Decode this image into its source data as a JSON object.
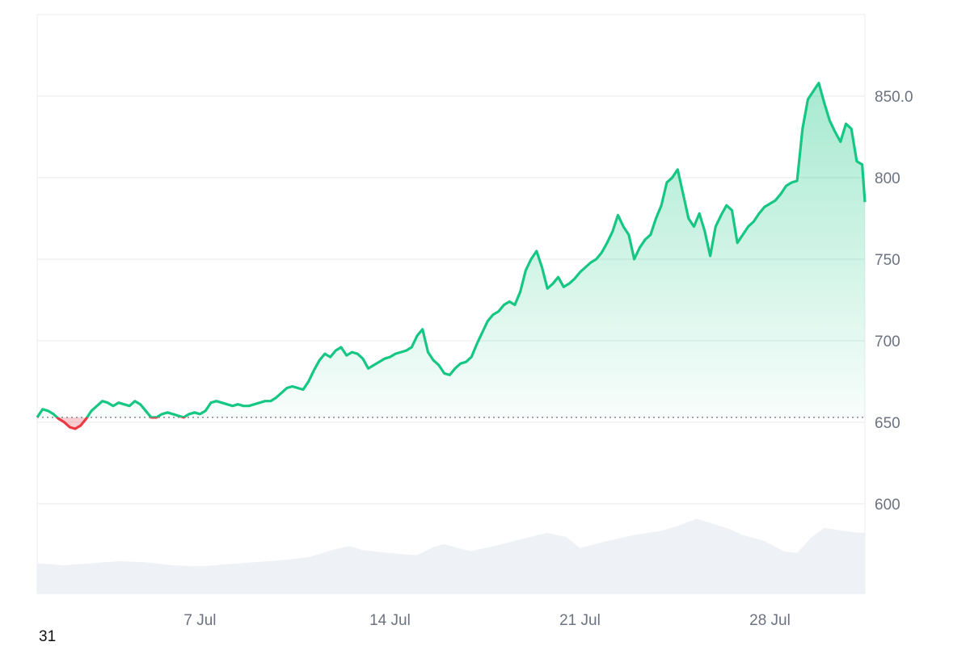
{
  "corner_label": "31",
  "colors": {
    "up_line": "#16c784",
    "down_line": "#ea3943",
    "grid": "#eef0f3",
    "baseline_dots": "#6b7280",
    "volume_fill": "#eef1f5",
    "axis_text": "#6b7280"
  },
  "chart_data": {
    "type": "area",
    "title": "",
    "xlabel": "",
    "ylabel": "",
    "ylim": [
      545,
      900
    ],
    "xlim": [
      0,
      30.5
    ],
    "yticks": [
      600,
      650,
      700,
      750,
      800,
      850
    ],
    "ytick_labels": [
      "600",
      "650",
      "700",
      "750",
      "800",
      "850.0"
    ],
    "xticks": [
      6,
      13,
      20,
      27
    ],
    "xtick_labels": [
      "7 Jul",
      "14 Jul",
      "21 Jul",
      "28 Jul"
    ],
    "baseline": 653,
    "grid": true,
    "legend": "none",
    "x_unit": "days since 1 Jul",
    "series": [
      {
        "values": [
          [
            0.0,
            653
          ],
          [
            0.2,
            658
          ],
          [
            0.4,
            657
          ],
          [
            0.6,
            655
          ],
          [
            0.8,
            652
          ],
          [
            1.0,
            650
          ],
          [
            1.2,
            647
          ],
          [
            1.4,
            646
          ],
          [
            1.6,
            648
          ],
          [
            1.8,
            652
          ],
          [
            2.0,
            657
          ],
          [
            2.2,
            660
          ],
          [
            2.4,
            663
          ],
          [
            2.6,
            662
          ],
          [
            2.8,
            660
          ],
          [
            3.0,
            662
          ],
          [
            3.2,
            661
          ],
          [
            3.4,
            660
          ],
          [
            3.6,
            663
          ],
          [
            3.8,
            661
          ],
          [
            4.0,
            657
          ],
          [
            4.2,
            653
          ],
          [
            4.4,
            653
          ],
          [
            4.6,
            655
          ],
          [
            4.8,
            656
          ],
          [
            5.0,
            655
          ],
          [
            5.2,
            654
          ],
          [
            5.4,
            653
          ],
          [
            5.6,
            655
          ],
          [
            5.8,
            656
          ],
          [
            6.0,
            655
          ],
          [
            6.2,
            657
          ],
          [
            6.4,
            662
          ],
          [
            6.6,
            663
          ],
          [
            6.8,
            662
          ],
          [
            7.0,
            661
          ],
          [
            7.2,
            660
          ],
          [
            7.4,
            661
          ],
          [
            7.6,
            660
          ],
          [
            7.8,
            660
          ],
          [
            8.0,
            661
          ],
          [
            8.2,
            662
          ],
          [
            8.4,
            663
          ],
          [
            8.6,
            663
          ],
          [
            8.8,
            665
          ],
          [
            9.0,
            668
          ],
          [
            9.2,
            671
          ],
          [
            9.4,
            672
          ],
          [
            9.6,
            671
          ],
          [
            9.8,
            670
          ],
          [
            10.0,
            675
          ],
          [
            10.2,
            682
          ],
          [
            10.4,
            688
          ],
          [
            10.6,
            692
          ],
          [
            10.8,
            690
          ],
          [
            11.0,
            694
          ],
          [
            11.2,
            696
          ],
          [
            11.4,
            691
          ],
          [
            11.6,
            693
          ],
          [
            11.8,
            692
          ],
          [
            12.0,
            689
          ],
          [
            12.2,
            683
          ],
          [
            12.4,
            685
          ],
          [
            12.6,
            687
          ],
          [
            12.8,
            689
          ],
          [
            13.0,
            690
          ],
          [
            13.2,
            692
          ],
          [
            13.4,
            693
          ],
          [
            13.6,
            694
          ],
          [
            13.8,
            696
          ],
          [
            14.0,
            703
          ],
          [
            14.2,
            707
          ],
          [
            14.4,
            693
          ],
          [
            14.6,
            688
          ],
          [
            14.8,
            685
          ],
          [
            15.0,
            680
          ],
          [
            15.2,
            679
          ],
          [
            15.4,
            683
          ],
          [
            15.6,
            686
          ],
          [
            15.8,
            687
          ],
          [
            16.0,
            690
          ],
          [
            16.2,
            698
          ],
          [
            16.4,
            705
          ],
          [
            16.6,
            712
          ],
          [
            16.8,
            716
          ],
          [
            17.0,
            718
          ],
          [
            17.2,
            722
          ],
          [
            17.4,
            724
          ],
          [
            17.6,
            722
          ],
          [
            17.8,
            730
          ],
          [
            18.0,
            743
          ],
          [
            18.2,
            750
          ],
          [
            18.4,
            755
          ],
          [
            18.6,
            745
          ],
          [
            18.8,
            732
          ],
          [
            19.0,
            735
          ],
          [
            19.2,
            739
          ],
          [
            19.4,
            733
          ],
          [
            19.6,
            735
          ],
          [
            19.8,
            738
          ],
          [
            20.0,
            742
          ],
          [
            20.2,
            745
          ],
          [
            20.4,
            748
          ],
          [
            20.6,
            750
          ],
          [
            20.8,
            754
          ],
          [
            21.0,
            760
          ],
          [
            21.2,
            767
          ],
          [
            21.4,
            777
          ],
          [
            21.6,
            770
          ],
          [
            21.8,
            765
          ],
          [
            22.0,
            750
          ],
          [
            22.2,
            757
          ],
          [
            22.4,
            762
          ],
          [
            22.6,
            765
          ],
          [
            22.8,
            775
          ],
          [
            23.0,
            783
          ],
          [
            23.2,
            797
          ],
          [
            23.4,
            800
          ],
          [
            23.6,
            805
          ],
          [
            23.8,
            790
          ],
          [
            24.0,
            775
          ],
          [
            24.2,
            770
          ],
          [
            24.4,
            778
          ],
          [
            24.6,
            767
          ],
          [
            24.8,
            752
          ],
          [
            25.0,
            770
          ],
          [
            25.2,
            777
          ],
          [
            25.4,
            783
          ],
          [
            25.6,
            780
          ],
          [
            25.8,
            760
          ],
          [
            26.0,
            765
          ],
          [
            26.2,
            770
          ],
          [
            26.4,
            773
          ],
          [
            26.6,
            778
          ],
          [
            26.8,
            782
          ],
          [
            27.0,
            784
          ],
          [
            27.2,
            786
          ],
          [
            27.4,
            790
          ],
          [
            27.6,
            795
          ],
          [
            27.8,
            797
          ],
          [
            28.0,
            798
          ],
          [
            28.2,
            830
          ],
          [
            28.4,
            848
          ],
          [
            28.6,
            853
          ],
          [
            28.8,
            858
          ],
          [
            29.0,
            846
          ],
          [
            29.2,
            835
          ],
          [
            29.4,
            828
          ],
          [
            29.6,
            822
          ],
          [
            29.8,
            833
          ],
          [
            30.0,
            830
          ],
          [
            30.2,
            810
          ],
          [
            30.4,
            808
          ],
          [
            30.5,
            785
          ]
        ]
      }
    ],
    "volume": [
      [
        0.0,
        0.3
      ],
      [
        1.0,
        0.28
      ],
      [
        2.0,
        0.3
      ],
      [
        3.0,
        0.32
      ],
      [
        4.0,
        0.31
      ],
      [
        5.0,
        0.28
      ],
      [
        6.0,
        0.27
      ],
      [
        7.0,
        0.29
      ],
      [
        8.0,
        0.31
      ],
      [
        9.0,
        0.33
      ],
      [
        10.0,
        0.36
      ],
      [
        11.0,
        0.44
      ],
      [
        11.5,
        0.47
      ],
      [
        12.0,
        0.43
      ],
      [
        13.0,
        0.4
      ],
      [
        14.0,
        0.38
      ],
      [
        14.6,
        0.46
      ],
      [
        15.0,
        0.49
      ],
      [
        15.5,
        0.45
      ],
      [
        16.0,
        0.42
      ],
      [
        17.0,
        0.48
      ],
      [
        18.0,
        0.55
      ],
      [
        18.8,
        0.6
      ],
      [
        19.5,
        0.56
      ],
      [
        20.0,
        0.45
      ],
      [
        21.0,
        0.52
      ],
      [
        22.0,
        0.58
      ],
      [
        23.0,
        0.62
      ],
      [
        23.7,
        0.68
      ],
      [
        24.3,
        0.74
      ],
      [
        24.8,
        0.7
      ],
      [
        25.5,
        0.64
      ],
      [
        26.0,
        0.58
      ],
      [
        26.8,
        0.52
      ],
      [
        27.5,
        0.42
      ],
      [
        28.0,
        0.4
      ],
      [
        28.5,
        0.55
      ],
      [
        29.0,
        0.65
      ],
      [
        29.5,
        0.63
      ],
      [
        30.0,
        0.61
      ],
      [
        30.5,
        0.6
      ]
    ]
  }
}
